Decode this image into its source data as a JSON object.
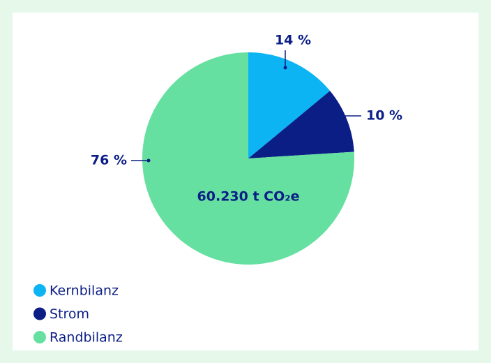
{
  "chart_data": {
    "type": "pie",
    "categories": [
      "Kernbilanz",
      "Strom",
      "Randbilanz"
    ],
    "values": [
      14,
      10,
      76
    ],
    "value_labels": [
      "14 %",
      "10 %",
      "76 %"
    ],
    "colors": [
      "#0db4f4",
      "#0b1e86",
      "#66e0a0"
    ],
    "annotation": "60.230 t CO₂e",
    "legend": "bottom-left"
  }
}
